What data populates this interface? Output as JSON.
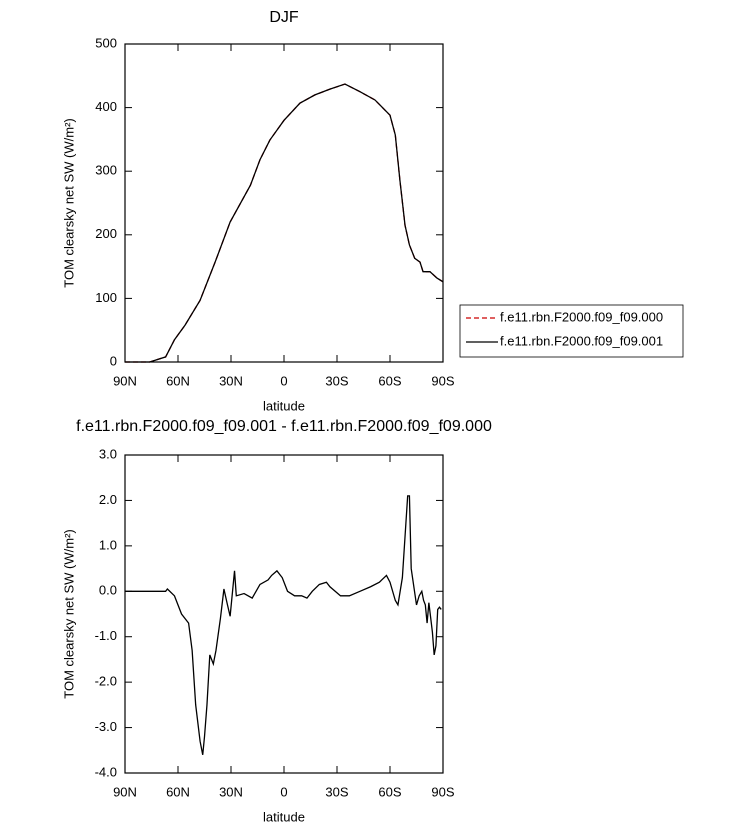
{
  "chart_data": [
    {
      "type": "line",
      "title": "DJF",
      "x_label": "latitude",
      "y_label": "TOM clearsky net SW (W/m²)",
      "xlim": [
        90,
        -90
      ],
      "xticks": [
        {
          "value": 90,
          "label": "90N"
        },
        {
          "value": 60,
          "label": "60N"
        },
        {
          "value": 30,
          "label": "30N"
        },
        {
          "value": 0,
          "label": "0"
        },
        {
          "value": -30,
          "label": "30S"
        },
        {
          "value": -60,
          "label": "60S"
        },
        {
          "value": -90,
          "label": "90S"
        }
      ],
      "ylim": [
        0,
        500
      ],
      "yticks": [
        0,
        100,
        200,
        300,
        400,
        500
      ],
      "legend": "right",
      "x": [
        90,
        81.5,
        76,
        67,
        62,
        56,
        47.5,
        39,
        30.5,
        19,
        13.6,
        8,
        0,
        -9,
        -17.5,
        -26,
        -34.5,
        -43,
        -51.5,
        -60,
        -63,
        -65.6,
        -68.5,
        -71,
        -74,
        -77,
        -78.7,
        -82.6,
        -86.6,
        -90
      ],
      "series": [
        {
          "name": "f.e11.rbn.F2000.f09_f09.000",
          "color": "#cc0000",
          "dash": true,
          "values": [
            0,
            0,
            0,
            8,
            35,
            58,
            97,
            157,
            220,
            278,
            318,
            349,
            380,
            407,
            420,
            429,
            437,
            425,
            412,
            388,
            357,
            286,
            215,
            184,
            163,
            157,
            142,
            142,
            132,
            126
          ]
        },
        {
          "name": "f.e11.rbn.F2000.f09_f09.001",
          "color": "#000000",
          "dash": false,
          "values": [
            0,
            0,
            0,
            8,
            35,
            58,
            97,
            157,
            220,
            278,
            318,
            349,
            380,
            407,
            420,
            429,
            437,
            425,
            412,
            388,
            357,
            286,
            215,
            184,
            163,
            157,
            142,
            142,
            132,
            126
          ]
        }
      ]
    },
    {
      "type": "line",
      "title": "f.e11.rbn.F2000.f09_f09.001 - f.e11.rbn.F2000.f09_f09.000",
      "x_label": "latitude",
      "y_label": "TOM clearsky net SW (W/m²)",
      "xlim": [
        90,
        -90
      ],
      "xticks": [
        {
          "value": 90,
          "label": "90N"
        },
        {
          "value": 60,
          "label": "60N"
        },
        {
          "value": 30,
          "label": "30N"
        },
        {
          "value": 0,
          "label": "0"
        },
        {
          "value": -30,
          "label": "30S"
        },
        {
          "value": -60,
          "label": "60S"
        },
        {
          "value": -90,
          "label": "90S"
        }
      ],
      "ylim": [
        -4,
        3
      ],
      "yticks": [
        {
          "value": 3,
          "label": "3.0"
        },
        {
          "value": 2,
          "label": "2.0"
        },
        {
          "value": 1,
          "label": "1.0"
        },
        {
          "value": 0,
          "label": "0.0"
        },
        {
          "value": -1,
          "label": "-1.0"
        },
        {
          "value": -2,
          "label": "-2.0"
        },
        {
          "value": -3,
          "label": "-3.0"
        },
        {
          "value": -4,
          "label": "-4.0"
        }
      ],
      "x": [
        90,
        67,
        66,
        62,
        58,
        54,
        52,
        50,
        47.5,
        46,
        45,
        43.6,
        42,
        40,
        38.5,
        36,
        34,
        32,
        30.5,
        28,
        27,
        22.6,
        18,
        13.6,
        9,
        7,
        4,
        1,
        -2,
        -6,
        -10,
        -13,
        -16,
        -20,
        -24,
        -26,
        -32,
        -37,
        -43,
        -49,
        -54,
        -58,
        -60,
        -63,
        -64.5,
        -67,
        -69,
        -70,
        -71,
        -72,
        -75,
        -76.5,
        -78,
        -79,
        -80,
        -81,
        -82,
        -84,
        -85,
        -86,
        -87,
        -88,
        -89
      ],
      "color": "#000000",
      "values": [
        0,
        0,
        0.05,
        -0.1,
        -0.5,
        -0.7,
        -1.3,
        -2.5,
        -3.3,
        -3.6,
        -3.2,
        -2.5,
        -1.4,
        -1.6,
        -1.3,
        -0.6,
        0.05,
        -0.3,
        -0.55,
        0.45,
        -0.1,
        -0.05,
        -0.15,
        0.15,
        0.25,
        0.35,
        0.45,
        0.3,
        0,
        -0.1,
        -0.1,
        -0.15,
        0,
        0.15,
        0.2,
        0.1,
        -0.1,
        -0.1,
        0,
        0.1,
        0.2,
        0.35,
        0.2,
        -0.2,
        -0.3,
        0.3,
        1.5,
        2.1,
        2.1,
        0.5,
        -0.3,
        -0.1,
        0,
        -0.2,
        -0.3,
        -0.7,
        -0.25,
        -0.9,
        -1.4,
        -1.2,
        -0.4,
        -0.35,
        -0.4
      ]
    }
  ]
}
